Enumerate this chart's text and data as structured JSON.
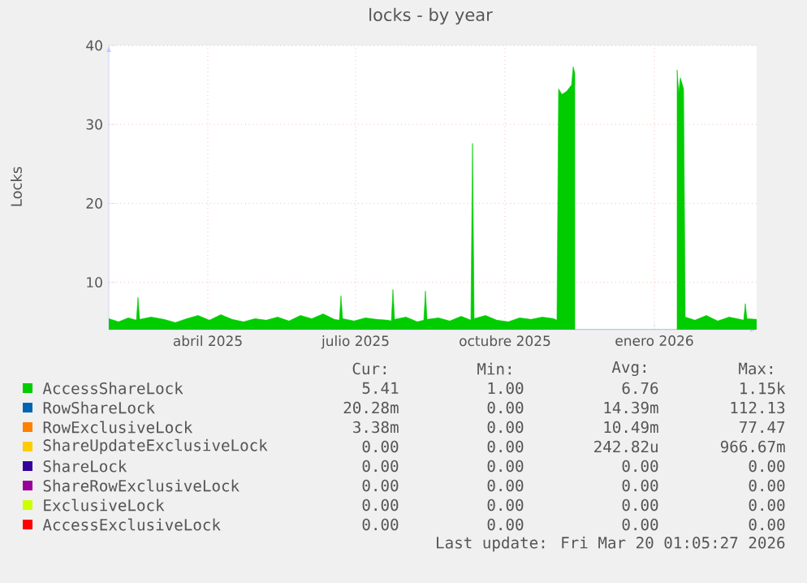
{
  "chart_data": {
    "type": "area",
    "title": "locks - by year",
    "ylabel": "Locks",
    "xlim": [
      "2025-02-14",
      "2026-03-20"
    ],
    "xticks": [
      {
        "value": "2025-04-16",
        "label": "abril 2025"
      },
      {
        "value": "2025-07-16",
        "label": "julio 2025"
      },
      {
        "value": "2025-10-16",
        "label": "octubre 2025"
      },
      {
        "value": "2026-01-16",
        "label": "enero 2026"
      }
    ],
    "ylim": [
      4,
      40
    ],
    "yticks": [
      10,
      20,
      30,
      40
    ],
    "grid": true,
    "legend": "bottom",
    "x": [
      "2025-02-14",
      "2025-02-20",
      "2025-02-26",
      "2025-03-03",
      "2025-03-04",
      "2025-03-05",
      "2025-03-12",
      "2025-03-20",
      "2025-03-27",
      "2025-04-03",
      "2025-04-10",
      "2025-04-17",
      "2025-04-24",
      "2025-05-01",
      "2025-05-08",
      "2025-05-15",
      "2025-05-22",
      "2025-05-29",
      "2025-06-05",
      "2025-06-12",
      "2025-06-19",
      "2025-06-26",
      "2025-07-03",
      "2025-07-06",
      "2025-07-07",
      "2025-07-08",
      "2025-07-15",
      "2025-07-22",
      "2025-07-29",
      "2025-08-05",
      "2025-08-07",
      "2025-08-08",
      "2025-08-09",
      "2025-08-16",
      "2025-08-23",
      "2025-08-27",
      "2025-08-28",
      "2025-08-29",
      "2025-09-05",
      "2025-09-12",
      "2025-09-19",
      "2025-09-25",
      "2025-09-26",
      "2025-09-27",
      "2025-10-04",
      "2025-10-11",
      "2025-10-18",
      "2025-10-25",
      "2025-11-01",
      "2025-11-08",
      "2025-11-15",
      "2025-11-17",
      "2025-11-18",
      "2025-11-20",
      "2025-11-23",
      "2025-11-26",
      "2025-11-27",
      "2025-11-28",
      "2025-11-29",
      "2026-01-29",
      "2026-01-30",
      "2026-01-31",
      "2026-02-01",
      "2026-02-03",
      "2026-02-04",
      "2026-02-10",
      "2026-02-17",
      "2026-02-24",
      "2026-03-03",
      "2026-03-10",
      "2026-03-12",
      "2026-03-13",
      "2026-03-14",
      "2026-03-20"
    ],
    "series": [
      {
        "name": "AccessShareLock",
        "color": "#00cc00",
        "values": [
          5.4,
          5.0,
          5.5,
          5.2,
          8.1,
          5.3,
          5.6,
          5.3,
          4.9,
          5.4,
          5.8,
          5.2,
          5.9,
          5.3,
          5.0,
          5.4,
          5.2,
          5.6,
          5.1,
          5.8,
          5.4,
          6.0,
          5.3,
          5.2,
          8.3,
          5.4,
          5.1,
          5.5,
          5.3,
          5.2,
          5.1,
          9.1,
          5.3,
          5.6,
          5.0,
          5.2,
          8.9,
          5.3,
          5.5,
          5.1,
          5.7,
          5.2,
          27.6,
          5.4,
          5.8,
          5.2,
          5.0,
          5.5,
          5.3,
          5.6,
          5.4,
          5.2,
          34.5,
          33.8,
          34.2,
          35.0,
          37.3,
          36.5,
          null,
          null,
          36.9,
          34.0,
          35.9,
          34.5,
          5.6,
          5.2,
          5.8,
          5.1,
          5.6,
          5.3,
          5.2,
          7.3,
          5.4,
          5.3
        ]
      },
      {
        "name": "RowShareLock",
        "color": "#0066b3",
        "values": [
          null,
          null,
          null,
          null,
          null,
          null,
          null,
          null,
          null,
          null,
          null,
          null,
          null,
          null,
          null,
          null,
          null,
          null,
          null,
          null,
          null,
          null,
          null,
          null,
          null,
          null,
          null,
          null,
          null,
          null,
          null,
          null,
          null,
          null,
          null,
          null,
          null,
          null,
          null,
          null,
          null,
          null,
          null,
          null,
          null,
          null,
          null,
          null,
          null,
          null,
          null,
          null,
          null,
          null,
          null,
          null,
          null,
          null,
          null,
          null,
          null,
          null,
          null,
          null,
          null,
          null,
          null,
          null,
          null,
          null,
          null,
          null,
          null,
          null
        ]
      },
      {
        "name": "RowExclusiveLock",
        "color": "#ff8000",
        "values": [
          null,
          null,
          null,
          null,
          null,
          null,
          null,
          null,
          null,
          null,
          null,
          null,
          null,
          null,
          null,
          null,
          null,
          null,
          null,
          null,
          null,
          null,
          null,
          null,
          null,
          null,
          null,
          null,
          null,
          null,
          null,
          null,
          null,
          null,
          null,
          null,
          null,
          null,
          null,
          null,
          null,
          null,
          null,
          null,
          null,
          null,
          null,
          null,
          null,
          null,
          null,
          null,
          null,
          null,
          null,
          null,
          null,
          null,
          null,
          null,
          null,
          null,
          null,
          null,
          null,
          null,
          null,
          null,
          null,
          null,
          null,
          null,
          null,
          null
        ]
      },
      {
        "name": "ShareUpdateExclusiveLock",
        "color": "#ffcc00",
        "values": [
          null,
          null,
          null,
          null,
          null,
          null,
          null,
          null,
          null,
          null,
          null,
          null,
          null,
          null,
          null,
          null,
          null,
          null,
          null,
          null,
          null,
          null,
          null,
          null,
          null,
          null,
          null,
          null,
          null,
          null,
          null,
          null,
          null,
          null,
          null,
          null,
          null,
          null,
          null,
          null,
          null,
          null,
          null,
          null,
          null,
          null,
          null,
          null,
          null,
          null,
          null,
          null,
          null,
          null,
          null,
          null,
          null,
          null,
          null,
          null,
          null,
          null,
          null,
          null,
          null,
          null,
          null,
          null,
          null,
          null,
          null,
          null,
          null,
          null
        ]
      },
      {
        "name": "ShareLock",
        "color": "#330099",
        "values": [
          null,
          null,
          null,
          null,
          null,
          null,
          null,
          null,
          null,
          null,
          null,
          null,
          null,
          null,
          null,
          null,
          null,
          null,
          null,
          null,
          null,
          null,
          null,
          null,
          null,
          null,
          null,
          null,
          null,
          null,
          null,
          null,
          null,
          null,
          null,
          null,
          null,
          null,
          null,
          null,
          null,
          null,
          null,
          null,
          null,
          null,
          null,
          null,
          null,
          null,
          null,
          null,
          null,
          null,
          null,
          null,
          null,
          null,
          null,
          null,
          null,
          null,
          null,
          null,
          null,
          null,
          null,
          null,
          null,
          null,
          null,
          null,
          null,
          null
        ]
      },
      {
        "name": "ShareRowExclusiveLock",
        "color": "#990099",
        "values": [
          null,
          null,
          null,
          null,
          null,
          null,
          null,
          null,
          null,
          null,
          null,
          null,
          null,
          null,
          null,
          null,
          null,
          null,
          null,
          null,
          null,
          null,
          null,
          null,
          null,
          null,
          null,
          null,
          null,
          null,
          null,
          null,
          null,
          null,
          null,
          null,
          null,
          null,
          null,
          null,
          null,
          null,
          null,
          null,
          null,
          null,
          null,
          null,
          null,
          null,
          null,
          null,
          null,
          null,
          null,
          null,
          null,
          null,
          null,
          null,
          null,
          null,
          null,
          null,
          null,
          null,
          null,
          null,
          null,
          null,
          null,
          null,
          null,
          null
        ]
      },
      {
        "name": "ExclusiveLock",
        "color": "#ccff00",
        "values": [
          null,
          null,
          null,
          null,
          null,
          null,
          null,
          null,
          null,
          null,
          null,
          null,
          null,
          null,
          null,
          null,
          null,
          null,
          null,
          null,
          null,
          null,
          null,
          null,
          null,
          null,
          null,
          null,
          null,
          null,
          null,
          null,
          null,
          null,
          null,
          null,
          null,
          null,
          null,
          null,
          null,
          null,
          null,
          null,
          null,
          null,
          null,
          null,
          null,
          null,
          null,
          null,
          null,
          null,
          null,
          null,
          null,
          null,
          null,
          null,
          null,
          null,
          null,
          null,
          null,
          null,
          null,
          null,
          null,
          null,
          null,
          null,
          null,
          null
        ]
      },
      {
        "name": "AccessExclusiveLock",
        "color": "#ff0000",
        "values": [
          null,
          null,
          null,
          null,
          null,
          null,
          null,
          null,
          null,
          null,
          null,
          null,
          null,
          null,
          null,
          null,
          null,
          null,
          null,
          null,
          null,
          null,
          null,
          null,
          null,
          null,
          null,
          null,
          null,
          null,
          null,
          null,
          null,
          null,
          null,
          null,
          null,
          null,
          null,
          null,
          null,
          null,
          null,
          null,
          null,
          null,
          null,
          null,
          null,
          null,
          null,
          null,
          null,
          null,
          null,
          null,
          null,
          null,
          null,
          null,
          null,
          null,
          null,
          null,
          null,
          null,
          null,
          null,
          null,
          null,
          null,
          null,
          null,
          null
        ]
      }
    ],
    "annotations": [
      "Cur:",
      "Min:",
      "Avg:",
      "Max:",
      "5.41",
      "1.00",
      "6.76",
      "1.15k",
      "20.28m",
      "0.00",
      "14.39m",
      "112.13",
      "3.38m",
      "0.00",
      "10.49m",
      "77.47",
      "0.00",
      "0.00",
      "242.82u",
      "966.67m",
      "0.00",
      "0.00",
      "0.00",
      "0.00",
      "0.00",
      "0.00",
      "0.00",
      "0.00",
      "0.00",
      "0.00",
      "0.00",
      "0.00",
      "0.00",
      "0.00",
      "0.00",
      "0.00",
      "Last update: Fri Mar 20 01:05:27 2026"
    ]
  }
}
